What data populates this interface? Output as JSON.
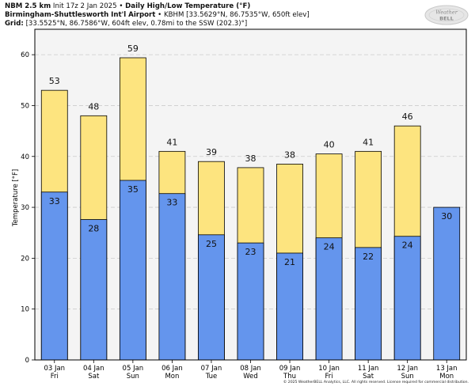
{
  "header": {
    "model": "NBM 2.5 km",
    "init": "Init 17z 2 Jan 2025",
    "product": "Daily High/Low Temperature (°F)",
    "station_name": "Birmingham-Shuttlesworth Int'l Airport",
    "station_info": "KBHM [33.5629°N, 86.7535°W, 650ft elev]",
    "grid_label": "Grid:",
    "grid_info": "[33.5525°N, 86.7586°W, 604ft elev, 0.78mi to the SSW (202.3)°]",
    "separator": "•"
  },
  "logo": {
    "text_top": "Weather",
    "text_bottom": "BELL"
  },
  "copyright": "© 2025 WeatherBELL Analytics, LLC. All rights reserved. License required for commercial distribution.",
  "colors": {
    "high": "#fde47f",
    "low": "#6495ed",
    "panel": "#f4f4f4",
    "grid": "#cccccc"
  },
  "chart_data": {
    "type": "bar",
    "ylabel": "Temperature [°F]",
    "ylim": [
      0,
      65
    ],
    "yticks": [
      0,
      10,
      20,
      30,
      40,
      50,
      60
    ],
    "grid": "horizontal dashed",
    "categories": [
      {
        "date": "03 Jan",
        "day": "Fri"
      },
      {
        "date": "04 Jan",
        "day": "Sat"
      },
      {
        "date": "05 Jan",
        "day": "Sun"
      },
      {
        "date": "06 Jan",
        "day": "Mon"
      },
      {
        "date": "07 Jan",
        "day": "Tue"
      },
      {
        "date": "08 Jan",
        "day": "Wed"
      },
      {
        "date": "09 Jan",
        "day": "Thu"
      },
      {
        "date": "10 Jan",
        "day": "Fri"
      },
      {
        "date": "11 Jan",
        "day": "Sat"
      },
      {
        "date": "12 Jan",
        "day": "Sun"
      },
      {
        "date": "13 Jan",
        "day": "Mon"
      }
    ],
    "series": [
      {
        "values": [
          53,
          48,
          59.4,
          41,
          39,
          37.8,
          38.5,
          40.5,
          41,
          46,
          null
        ],
        "labels": [
          "53",
          "48",
          "59",
          "41",
          "39",
          "38",
          "38",
          "40",
          "41",
          "46",
          ""
        ]
      },
      {
        "values": [
          33,
          27.6,
          35.3,
          32.7,
          24.6,
          23,
          21,
          24,
          22.1,
          24.3,
          30
        ],
        "labels": [
          "33",
          "28",
          "35",
          "33",
          "25",
          "23",
          "21",
          "24",
          "22",
          "24",
          "30"
        ]
      }
    ]
  }
}
